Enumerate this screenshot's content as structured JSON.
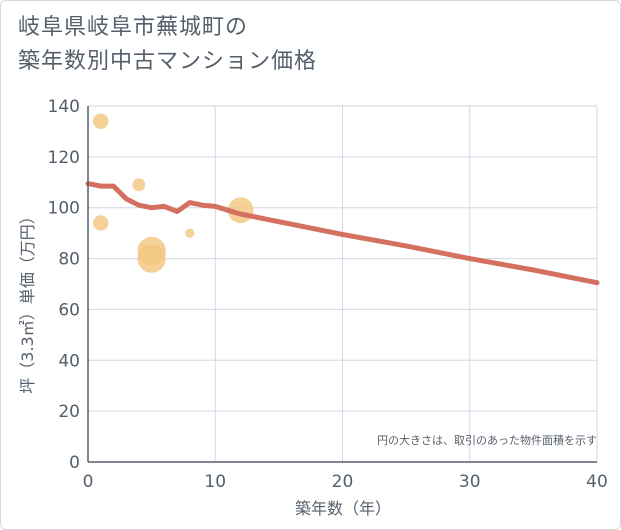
{
  "title_lines": [
    "岐阜県岐阜市蕪城町の",
    "築年数別中古マンション価格"
  ],
  "chart_data": {
    "type": "scatter",
    "title": "岐阜県岐阜市蕪城町の築年数別中古マンション価格",
    "xlabel": "築年数（年）",
    "ylabel": "坪（3.3㎡）単価（万円）",
    "xlim": [
      0,
      40
    ],
    "ylim": [
      0,
      140
    ],
    "xticks": [
      0,
      10,
      20,
      30,
      40
    ],
    "yticks": [
      0,
      20,
      40,
      60,
      80,
      100,
      120,
      140
    ],
    "grid": true,
    "annotation": "円の大きさは、取引のあった物件面積を示す",
    "points": [
      {
        "x": 1,
        "y": 134,
        "size": 2
      },
      {
        "x": 1,
        "y": 94,
        "size": 2
      },
      {
        "x": 4,
        "y": 109,
        "size": 1.5
      },
      {
        "x": 5,
        "y": 83,
        "size": 4.5
      },
      {
        "x": 5,
        "y": 80,
        "size": 4.5
      },
      {
        "x": 8,
        "y": 90,
        "size": 0.8
      },
      {
        "x": 12,
        "y": 99,
        "size": 4
      }
    ],
    "trend_line": {
      "x": [
        0,
        1,
        2,
        3,
        4,
        5,
        6,
        7,
        8,
        9,
        10,
        11,
        12,
        13,
        14,
        15,
        20,
        25,
        30,
        35,
        40
      ],
      "y": [
        109.5,
        108.5,
        108.5,
        103.5,
        101,
        100,
        100.5,
        98.5,
        102,
        101,
        100.5,
        99,
        97.5,
        96.5,
        95.5,
        94.5,
        89.5,
        85,
        80,
        75.5,
        70.5
      ]
    },
    "colors": {
      "points": "#f3c680",
      "line": "#d4705f",
      "grid": "#cfd8e3",
      "axis": "#555f6b"
    }
  }
}
